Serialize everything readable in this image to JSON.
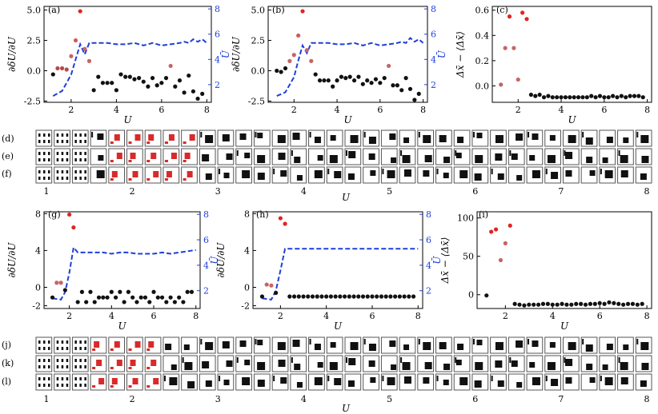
{
  "chart_data": [
    {
      "panel": "(a)",
      "type": "scatter",
      "xlabel": "U",
      "ylabel": "∂δU/∂U",
      "y2label": "Ū",
      "xticks": [
        2,
        4,
        6,
        8
      ],
      "yticks": [
        "-2.5",
        "0.0",
        "2.5",
        "5.0"
      ],
      "y2ticks": [
        2,
        4,
        6,
        8
      ],
      "xlim": [
        0.8,
        8.2
      ],
      "ylim": [
        -2.6,
        5.3
      ],
      "y2lim": [
        0.6,
        8.2
      ],
      "x": [
        1.2,
        1.4,
        1.6,
        1.8,
        2.0,
        2.2,
        2.4,
        2.6,
        2.8,
        3.0,
        3.2,
        3.4,
        3.6,
        3.8,
        4.0,
        4.2,
        4.4,
        4.6,
        4.8,
        5.0,
        5.2,
        5.4,
        5.6,
        5.8,
        6.0,
        6.2,
        6.4,
        6.6,
        6.8,
        7.0,
        7.2,
        7.4,
        7.6,
        7.8
      ],
      "y": [
        -0.3,
        0.2,
        0.2,
        0.1,
        1.2,
        2.5,
        4.9,
        1.8,
        0.8,
        -1.6,
        -0.5,
        -1.0,
        -1.0,
        -1.0,
        -1.6,
        -0.3,
        -0.5,
        -0.5,
        -0.7,
        -0.6,
        -0.9,
        -1.3,
        -0.6,
        -1.2,
        -1.0,
        -0.6,
        0.4,
        -1.3,
        -0.8,
        -1.8,
        -0.4,
        -1.7,
        -2.3,
        -1.9
      ],
      "colors": [
        "#111111",
        "#b44a4a",
        "#b44a4a",
        "#b44a4a",
        "#c86464",
        "#d05a5a",
        "#e02424",
        "#c86464",
        "#c86464",
        "#111111",
        "#111111",
        "#111111",
        "#111111",
        "#111111",
        "#111111",
        "#111111",
        "#111111",
        "#111111",
        "#111111",
        "#111111",
        "#111111",
        "#111111",
        "#111111",
        "#111111",
        "#111111",
        "#111111",
        "#c86464",
        "#111111",
        "#111111",
        "#111111",
        "#111111",
        "#111111",
        "#111111",
        "#111111"
      ],
      "line_x": [
        1.2,
        1.6,
        2.0,
        2.2,
        2.4,
        2.6,
        2.8,
        3.2,
        3.6,
        4.0,
        4.4,
        4.8,
        5.2,
        5.6,
        6.0,
        6.4,
        6.8,
        7.0,
        7.2,
        7.4,
        7.6,
        7.8,
        8.0
      ],
      "line_y": [
        1.1,
        1.5,
        2.8,
        4.0,
        5.2,
        4.4,
        5.3,
        5.3,
        5.3,
        5.2,
        5.2,
        5.3,
        5.1,
        5.3,
        5.1,
        5.2,
        5.3,
        5.4,
        5.3,
        5.6,
        5.4,
        5.6,
        5.3
      ]
    },
    {
      "panel": "(b)",
      "type": "scatter",
      "xlabel": "U",
      "ylabel": "∂δU/∂U",
      "y2label": "Ū",
      "xticks": [
        2,
        4,
        6,
        8
      ],
      "yticks": [
        "-2.5",
        "0.0",
        "2.5",
        "5.0"
      ],
      "y2ticks": [
        2,
        4,
        6,
        8
      ],
      "xlim": [
        0.8,
        8.2
      ],
      "ylim": [
        -2.6,
        5.3
      ],
      "y2lim": [
        0.6,
        8.2
      ],
      "x": [
        1.2,
        1.4,
        1.6,
        1.8,
        2.0,
        2.2,
        2.4,
        2.6,
        2.8,
        3.0,
        3.2,
        3.4,
        3.6,
        3.8,
        4.0,
        4.2,
        4.4,
        4.6,
        4.8,
        5.0,
        5.2,
        5.4,
        5.6,
        5.8,
        6.0,
        6.2,
        6.4,
        6.6,
        6.8,
        7.0,
        7.2,
        7.4,
        7.6,
        7.8
      ],
      "y": [
        0.0,
        -0.1,
        0.2,
        0.8,
        1.3,
        2.9,
        4.9,
        1.7,
        0.8,
        -0.3,
        -0.8,
        -0.8,
        -0.8,
        -1.3,
        -0.8,
        -0.5,
        -0.6,
        -0.5,
        -0.8,
        -0.5,
        -1.1,
        -0.8,
        -1.0,
        -0.7,
        -1.0,
        -0.6,
        0.4,
        -1.2,
        -1.2,
        -1.6,
        -0.6,
        -1.5,
        -2.4,
        -1.9
      ],
      "colors": [
        "#111111",
        "#111111",
        "#111111",
        "#c86464",
        "#c86464",
        "#d05a5a",
        "#e02424",
        "#c86464",
        "#c86464",
        "#111111",
        "#111111",
        "#111111",
        "#111111",
        "#111111",
        "#111111",
        "#111111",
        "#111111",
        "#111111",
        "#111111",
        "#111111",
        "#111111",
        "#111111",
        "#111111",
        "#111111",
        "#111111",
        "#111111",
        "#c86464",
        "#111111",
        "#111111",
        "#111111",
        "#111111",
        "#111111",
        "#111111",
        "#111111"
      ],
      "line_x": [
        1.2,
        1.6,
        2.0,
        2.2,
        2.4,
        2.6,
        2.8,
        3.2,
        3.6,
        4.0,
        4.4,
        4.8,
        5.2,
        5.6,
        6.0,
        6.4,
        6.8,
        7.0,
        7.2,
        7.4,
        7.6,
        7.8,
        8.0
      ],
      "line_y": [
        1.1,
        1.4,
        2.6,
        3.9,
        5.1,
        4.5,
        5.3,
        5.3,
        5.3,
        5.2,
        5.2,
        5.3,
        5.1,
        5.3,
        5.1,
        5.2,
        5.3,
        5.4,
        5.3,
        5.7,
        5.4,
        5.6,
        5.3
      ]
    },
    {
      "panel": "(c)",
      "type": "scatter",
      "xlabel": "U",
      "ylabel": "Δx̄ − ⟨Δx̄⟩",
      "xticks": [
        2,
        4,
        6,
        8
      ],
      "yticks": [
        "0.0",
        "0.2",
        "0.4",
        "0.6"
      ],
      "xlim": [
        0.8,
        8.2
      ],
      "ylim": [
        -0.13,
        0.63
      ],
      "x": [
        1.2,
        1.4,
        1.6,
        1.8,
        2.0,
        2.2,
        2.4,
        2.6,
        2.8,
        3.0,
        3.2,
        3.4,
        3.6,
        3.8,
        4.0,
        4.2,
        4.4,
        4.6,
        4.8,
        5.0,
        5.2,
        5.4,
        5.6,
        5.8,
        6.0,
        6.2,
        6.4,
        6.6,
        6.8,
        7.0,
        7.2,
        7.4,
        7.6,
        7.8
      ],
      "y": [
        0.01,
        0.3,
        0.55,
        0.3,
        0.05,
        0.58,
        0.53,
        -0.07,
        -0.08,
        -0.07,
        -0.09,
        -0.08,
        -0.09,
        -0.09,
        -0.09,
        -0.09,
        -0.09,
        -0.09,
        -0.09,
        -0.09,
        -0.09,
        -0.08,
        -0.09,
        -0.08,
        -0.09,
        -0.09,
        -0.08,
        -0.09,
        -0.08,
        -0.09,
        -0.08,
        -0.08,
        -0.08,
        -0.09
      ],
      "colors": [
        "#c86464",
        "#c86464",
        "#e02424",
        "#c86464",
        "#c86464",
        "#e02424",
        "#e02424",
        "#111111",
        "#111111",
        "#111111",
        "#111111",
        "#111111",
        "#111111",
        "#111111",
        "#111111",
        "#111111",
        "#111111",
        "#111111",
        "#111111",
        "#111111",
        "#111111",
        "#111111",
        "#111111",
        "#111111",
        "#111111",
        "#111111",
        "#111111",
        "#111111",
        "#111111",
        "#111111",
        "#111111",
        "#111111",
        "#111111",
        "#111111"
      ]
    },
    {
      "panel": "(g)",
      "type": "scatter",
      "xlabel": "U",
      "ylabel": "∂δU/∂U",
      "y2label": "Ū",
      "xticks": [
        2,
        4,
        6,
        8
      ],
      "yticks": [
        "-2",
        "0",
        "4",
        "8"
      ],
      "y2ticks": [
        2,
        4,
        6,
        8
      ],
      "xlim": [
        0.8,
        8.2
      ],
      "ylim": [
        -2.3,
        8.2
      ],
      "y2lim": [
        0.6,
        8.2
      ],
      "x": [
        1.2,
        1.4,
        1.6,
        1.8,
        2.0,
        2.2,
        2.4,
        2.6,
        2.8,
        3.0,
        3.2,
        3.4,
        3.6,
        3.8,
        4.0,
        4.2,
        4.4,
        4.6,
        4.8,
        5.0,
        5.2,
        5.4,
        5.6,
        5.8,
        6.0,
        6.2,
        6.4,
        6.6,
        6.8,
        7.0,
        7.2,
        7.4,
        7.6,
        7.8
      ],
      "y": [
        -1.1,
        0.5,
        0.5,
        -0.3,
        7.9,
        6.5,
        -1.6,
        -0.5,
        -1.6,
        -0.5,
        -1.6,
        -1.1,
        -1.1,
        -1.1,
        -0.5,
        -1.1,
        -0.5,
        -1.6,
        -0.5,
        -1.1,
        -1.6,
        -1.1,
        -1.1,
        -1.6,
        -0.5,
        -1.1,
        -1.1,
        -1.6,
        -1.1,
        -1.6,
        -1.1,
        -1.6,
        -0.5,
        -0.5
      ],
      "colors": [
        "#111111",
        "#c86464",
        "#c86464",
        "#111111",
        "#e02424",
        "#e02424",
        "#111111",
        "#111111",
        "#111111",
        "#111111",
        "#111111",
        "#111111",
        "#111111",
        "#111111",
        "#111111",
        "#111111",
        "#111111",
        "#111111",
        "#111111",
        "#111111",
        "#111111",
        "#111111",
        "#111111",
        "#111111",
        "#111111",
        "#111111",
        "#111111",
        "#111111",
        "#111111",
        "#111111",
        "#111111",
        "#111111",
        "#111111",
        "#111111"
      ],
      "line_x": [
        1.2,
        1.6,
        1.8,
        2.0,
        2.2,
        2.4,
        2.8,
        3.2,
        3.6,
        4.0,
        4.4,
        4.8,
        5.2,
        5.6,
        6.0,
        6.4,
        6.8,
        7.2,
        7.6,
        8.0
      ],
      "line_y": [
        1.4,
        1.3,
        1.9,
        3.4,
        5.4,
        5.0,
        5.0,
        5.0,
        5.0,
        4.9,
        5.0,
        5.0,
        4.9,
        4.9,
        4.9,
        5.0,
        4.9,
        5.0,
        5.1,
        5.2
      ]
    },
    {
      "panel": "(h)",
      "type": "scatter",
      "xlabel": "U",
      "ylabel": "∂δU/∂U",
      "y2label": "Ū",
      "xticks": [
        2,
        4,
        6,
        8
      ],
      "yticks": [
        "-2",
        "0",
        "4",
        "8"
      ],
      "y2ticks": [
        2,
        4,
        6,
        8
      ],
      "xlim": [
        0.8,
        8.2
      ],
      "ylim": [
        -2.3,
        8.2
      ],
      "y2lim": [
        0.6,
        8.2
      ],
      "x": [
        1.2,
        1.4,
        1.6,
        1.8,
        2.0,
        2.2,
        2.4,
        2.6,
        2.8,
        3.0,
        3.2,
        3.4,
        3.6,
        3.8,
        4.0,
        4.2,
        4.4,
        4.6,
        4.8,
        5.0,
        5.2,
        5.4,
        5.6,
        5.8,
        6.0,
        6.2,
        6.4,
        6.6,
        6.8,
        7.0,
        7.2,
        7.4,
        7.6,
        7.8
      ],
      "y": [
        -1.0,
        0.3,
        0.2,
        -0.6,
        7.5,
        6.9,
        -1.0,
        -1.0,
        -1.0,
        -1.0,
        -1.0,
        -1.0,
        -1.0,
        -1.0,
        -1.0,
        -1.0,
        -1.0,
        -1.0,
        -1.0,
        -1.0,
        -1.0,
        -1.0,
        -1.0,
        -1.0,
        -1.0,
        -1.0,
        -1.0,
        -1.0,
        -1.0,
        -1.0,
        -1.0,
        -1.0,
        -1.0,
        -1.0
      ],
      "colors": [
        "#111111",
        "#c86464",
        "#c86464",
        "#111111",
        "#e02424",
        "#e02424",
        "#111111",
        "#111111",
        "#111111",
        "#111111",
        "#111111",
        "#111111",
        "#111111",
        "#111111",
        "#111111",
        "#111111",
        "#111111",
        "#111111",
        "#111111",
        "#111111",
        "#111111",
        "#111111",
        "#111111",
        "#111111",
        "#111111",
        "#111111",
        "#111111",
        "#111111",
        "#111111",
        "#111111",
        "#111111",
        "#111111",
        "#111111",
        "#111111"
      ],
      "line_x": [
        1.2,
        1.6,
        1.8,
        2.0,
        2.2,
        2.4,
        3.0,
        4.0,
        5.0,
        6.0,
        7.0,
        8.0
      ],
      "line_y": [
        1.4,
        1.3,
        2.0,
        3.6,
        5.3,
        5.3,
        5.3,
        5.3,
        5.3,
        5.3,
        5.3,
        5.3
      ]
    },
    {
      "panel": "(i)",
      "type": "scatter",
      "xlabel": "U",
      "ylabel": "Δx̄ − ⟨Δx̄⟩",
      "xticks": [
        2,
        4,
        6,
        8
      ],
      "yticks": [
        "0",
        "50",
        "100"
      ],
      "xlim": [
        0.8,
        8.2
      ],
      "ylim": [
        -18,
        108
      ],
      "x": [
        1.2,
        1.4,
        1.6,
        1.8,
        2.0,
        2.2,
        2.4,
        2.6,
        2.8,
        3.0,
        3.2,
        3.4,
        3.6,
        3.8,
        4.0,
        4.2,
        4.4,
        4.6,
        4.8,
        5.0,
        5.2,
        5.4,
        5.6,
        5.8,
        6.0,
        6.2,
        6.4,
        6.6,
        6.8,
        7.0,
        7.2,
        7.4,
        7.6,
        7.8
      ],
      "y": [
        -1,
        82,
        85,
        45,
        67,
        90,
        -12,
        -13,
        -14,
        -13,
        -13,
        -13,
        -12,
        -12,
        -13,
        -13,
        -12,
        -13,
        -13,
        -12,
        -12,
        -13,
        -12,
        -12,
        -11,
        -12,
        -10,
        -11,
        -12,
        -13,
        -12,
        -12,
        -13,
        -12
      ],
      "colors": [
        "#111111",
        "#e02424",
        "#e02424",
        "#c86464",
        "#c86464",
        "#e02424",
        "#111111",
        "#111111",
        "#111111",
        "#111111",
        "#111111",
        "#111111",
        "#111111",
        "#111111",
        "#111111",
        "#111111",
        "#111111",
        "#111111",
        "#111111",
        "#111111",
        "#111111",
        "#111111",
        "#111111",
        "#111111",
        "#111111",
        "#111111",
        "#111111",
        "#111111",
        "#111111",
        "#111111",
        "#111111",
        "#111111",
        "#111111",
        "#111111"
      ]
    }
  ],
  "strips": {
    "top": {
      "rows": [
        "(d)",
        "(e)",
        "(f)"
      ],
      "xticks": [
        "1",
        "2",
        "3",
        "4",
        "5",
        "6",
        "7",
        "8"
      ],
      "xlabel": "U"
    },
    "bottom": {
      "rows": [
        "(j)",
        "(k)",
        "(l)"
      ],
      "xticks": [
        "1",
        "2",
        "3",
        "4",
        "5",
        "6",
        "7",
        "8"
      ],
      "xlabel": "U"
    }
  }
}
